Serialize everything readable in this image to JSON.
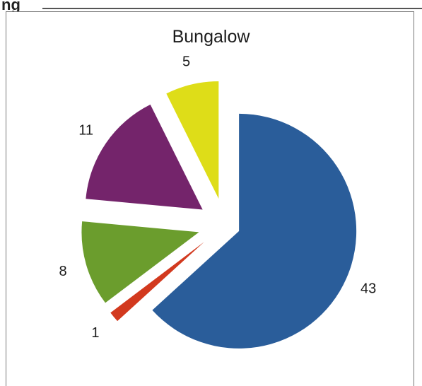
{
  "header_fragment": "ng",
  "chart_data": {
    "type": "pie",
    "title": "Bungalow",
    "exploded": true,
    "slices": [
      {
        "value": 43,
        "color": "#2a5d9a"
      },
      {
        "value": 1,
        "color": "#d2391e"
      },
      {
        "value": 8,
        "color": "#6b9d2d"
      },
      {
        "value": 11,
        "color": "#74246b"
      },
      {
        "value": 5,
        "color": "#dedd18"
      }
    ]
  }
}
